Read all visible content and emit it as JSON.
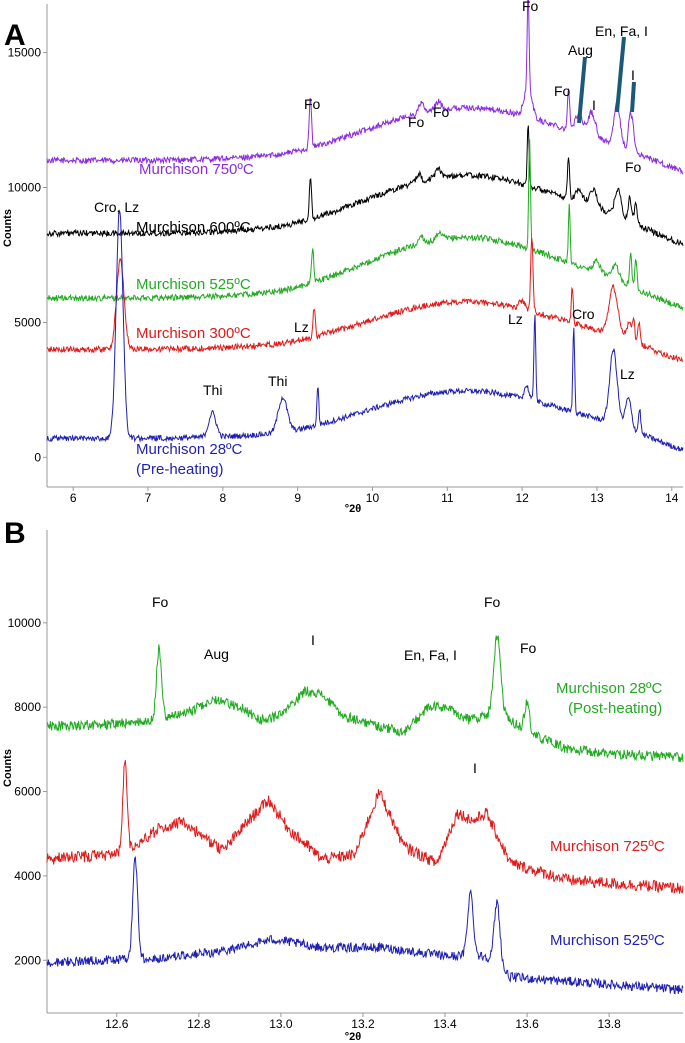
{
  "chart_data": [
    {
      "panel_label": "A",
      "type": "line",
      "xlabel": "°2θ",
      "ylabel": "Counts",
      "xlim": [
        5.65,
        14.15
      ],
      "ylim": [
        -1100,
        16800
      ],
      "x_ticks": [
        "6",
        "7",
        "8",
        "9",
        "10",
        "11",
        "12",
        "13",
        "14"
      ],
      "y_ticks": [
        "0",
        "5000",
        "10000",
        "15000"
      ],
      "grid": false,
      "legend": "none",
      "series": [
        {
          "name": "Murchison 750ºC",
          "color": "#8b2be2",
          "baseline": 11000,
          "hump": 2000,
          "noise": 110,
          "peaks": [
            [
              9.17,
              1900,
              0.015
            ],
            [
              10.65,
              400,
              0.03
            ],
            [
              10.88,
              300,
              0.04
            ],
            [
              12.08,
              3400,
              0.012
            ],
            [
              12.08,
              1200,
              0.05
            ],
            [
              12.62,
              1500,
              0.015
            ],
            [
              12.76,
              700,
              0.05
            ],
            [
              12.93,
              900,
              0.05
            ],
            [
              13.27,
              1500,
              0.04
            ],
            [
              13.44,
              1200,
              0.02
            ],
            [
              13.48,
              900,
              0.02
            ]
          ]
        },
        {
          "name": "Murchison 600ºC",
          "color": "#000000",
          "baseline": 8300,
          "hump": 2200,
          "noise": 110,
          "peaks": [
            [
              9.17,
              1500,
              0.015
            ],
            [
              10.62,
              300,
              0.03
            ],
            [
              10.88,
              300,
              0.04
            ],
            [
              12.08,
              2400,
              0.012
            ],
            [
              12.62,
              1500,
              0.015
            ],
            [
              12.76,
              500,
              0.05
            ],
            [
              12.95,
              700,
              0.05
            ],
            [
              13.28,
              1000,
              0.04
            ],
            [
              13.44,
              900,
              0.02
            ],
            [
              13.52,
              700,
              0.02
            ]
          ]
        },
        {
          "name": "Murchison 525ºC",
          "color": "#22aa22",
          "baseline": 5900,
          "hump": 2300,
          "noise": 110,
          "peaks": [
            [
              9.2,
              1300,
              0.015
            ],
            [
              10.65,
              300,
              0.03
            ],
            [
              10.9,
              200,
              0.04
            ],
            [
              12.1,
              4000,
              0.012
            ],
            [
              12.63,
              2200,
              0.012
            ],
            [
              13.0,
              400,
              0.05
            ],
            [
              13.25,
              500,
              0.04
            ],
            [
              13.45,
              1200,
              0.015
            ],
            [
              13.52,
              1000,
              0.015
            ]
          ]
        },
        {
          "name": "Murchison 300ºC",
          "color": "#e01a1a",
          "baseline": 4000,
          "hump": 1800,
          "noise": 110,
          "peaks": [
            [
              6.63,
              3300,
              0.05
            ],
            [
              9.22,
              1100,
              0.015
            ],
            [
              12.0,
              300,
              0.04
            ],
            [
              12.13,
              2800,
              0.015
            ],
            [
              12.67,
              1400,
              0.012
            ],
            [
              13.22,
              1700,
              0.06
            ],
            [
              13.43,
              600,
              0.03
            ],
            [
              13.49,
              800,
              0.015
            ],
            [
              13.56,
              800,
              0.015
            ]
          ]
        },
        {
          "name": "Murchison 28ºC",
          "color": "#1f1fb4",
          "baseline": 700,
          "hump": 1800,
          "noise": 100,
          "peaks": [
            [
              6.62,
              8500,
              0.045
            ],
            [
              7.86,
              900,
              0.05
            ],
            [
              8.8,
              1300,
              0.06
            ],
            [
              9.27,
              1500,
              0.012
            ],
            [
              12.06,
              500,
              0.03
            ],
            [
              12.17,
              3300,
              0.012
            ],
            [
              12.69,
              3200,
              0.012
            ],
            [
              13.22,
              2700,
              0.05
            ],
            [
              13.42,
              1100,
              0.04
            ],
            [
              13.57,
              900,
              0.015
            ]
          ]
        }
      ],
      "series_labels": [
        {
          "text": "Murchison 750ºC",
          "color": "#8b2be2"
        },
        {
          "text": "Murchison 600ºC",
          "color": "#000000"
        },
        {
          "text": "Murchison 525ºC",
          "color": "#22aa22"
        },
        {
          "text": "Murchison 300ºC",
          "color": "#e01a1a"
        },
        {
          "text": "Murchison 28ºC",
          "color": "#1f1fb4"
        },
        {
          "text": "(Pre-heating)",
          "color": "#1f1fb4"
        }
      ],
      "annotations": [
        "Fo",
        "Fo",
        "Fo",
        "Fo",
        "Fo",
        "Aug",
        "En, Fa, I",
        "I",
        "I",
        "Fo",
        "Cro, Lz",
        "Lz",
        "Cro",
        "Lz",
        "Thi",
        "Thi",
        "Lz"
      ],
      "marker_color": "#1a5a78"
    },
    {
      "panel_label": "B",
      "type": "line",
      "xlabel": "°2θ",
      "ylabel": "Counts",
      "xlim": [
        12.43,
        13.98
      ],
      "ylim": [
        750,
        12200
      ],
      "x_ticks": [
        "12.6",
        "12.8",
        "13.0",
        "13.2",
        "13.4",
        "13.6",
        "13.8"
      ],
      "y_ticks": [
        "2000",
        "4000",
        "6000",
        "8000",
        "10000"
      ],
      "grid": false,
      "legend": "none",
      "series": [
        {
          "name": "Murchison 28ºC",
          "color": "#22aa22",
          "baseline": 7600,
          "noise": 120,
          "pts": [
            [
              12.43,
              7550
            ],
            [
              12.6,
              7600
            ],
            [
              12.7,
              7700
            ],
            [
              12.78,
              7900
            ],
            [
              12.84,
              8200
            ],
            [
              12.9,
              8000
            ],
            [
              12.95,
              7700
            ],
            [
              13.0,
              7800
            ],
            [
              13.06,
              8400
            ],
            [
              13.1,
              8300
            ],
            [
              13.15,
              7800
            ],
            [
              13.22,
              7600
            ],
            [
              13.3,
              7400
            ],
            [
              13.36,
              8000
            ],
            [
              13.4,
              8000
            ],
            [
              13.46,
              7700
            ],
            [
              13.53,
              7900
            ],
            [
              13.6,
              7400
            ],
            [
              13.7,
              7000
            ],
            [
              13.8,
              6900
            ],
            [
              13.98,
              6800
            ]
          ],
          "peaks": [
            [
              12.703,
              1700,
              0.006
            ],
            [
              13.527,
              1800,
              0.008
            ],
            [
              13.6,
              700,
              0.006
            ]
          ]
        },
        {
          "name": "Murchison 725ºC",
          "color": "#e01a1a",
          "baseline": 4400,
          "noise": 140,
          "pts": [
            [
              12.43,
              4400
            ],
            [
              12.58,
              4500
            ],
            [
              12.64,
              4700
            ],
            [
              12.7,
              5100
            ],
            [
              12.76,
              5300
            ],
            [
              12.8,
              5000
            ],
            [
              12.86,
              4600
            ],
            [
              12.92,
              5300
            ],
            [
              12.97,
              5800
            ],
            [
              13.02,
              5100
            ],
            [
              13.1,
              4400
            ],
            [
              13.18,
              4500
            ],
            [
              13.24,
              6000
            ],
            [
              13.3,
              4700
            ],
            [
              13.38,
              4300
            ],
            [
              13.43,
              5500
            ],
            [
              13.47,
              5300
            ],
            [
              13.5,
              5500
            ],
            [
              13.56,
              4300
            ],
            [
              13.7,
              3900
            ],
            [
              13.98,
              3700
            ]
          ],
          "peaks": [
            [
              12.62,
              2100,
              0.005
            ]
          ]
        },
        {
          "name": "Murchison 525ºC",
          "color": "#1f1fb4",
          "baseline": 2000,
          "noise": 110,
          "pts": [
            [
              12.43,
              1950
            ],
            [
              12.7,
              2050
            ],
            [
              12.85,
              2200
            ],
            [
              12.98,
              2500
            ],
            [
              13.1,
              2300
            ],
            [
              13.25,
              2300
            ],
            [
              13.4,
              2100
            ],
            [
              13.5,
              2100
            ],
            [
              13.56,
              1600
            ],
            [
              13.7,
              1500
            ],
            [
              13.98,
              1300
            ]
          ],
          "peaks": [
            [
              12.645,
              2400,
              0.006
            ],
            [
              13.462,
              1500,
              0.007
            ],
            [
              13.527,
              1500,
              0.007
            ]
          ]
        }
      ],
      "series_labels": [
        {
          "text": "Murchison 28ºC",
          "color": "#22aa22"
        },
        {
          "text": "(Post-heating)",
          "color": "#22aa22"
        },
        {
          "text": "Murchison 725ºC",
          "color": "#e01a1a"
        },
        {
          "text": "Murchison 525ºC",
          "color": "#1f1fb4"
        }
      ],
      "annotations": [
        "Fo",
        "Aug",
        "I",
        "En, Fa, I",
        "Fo",
        "Fo",
        "I"
      ]
    }
  ]
}
